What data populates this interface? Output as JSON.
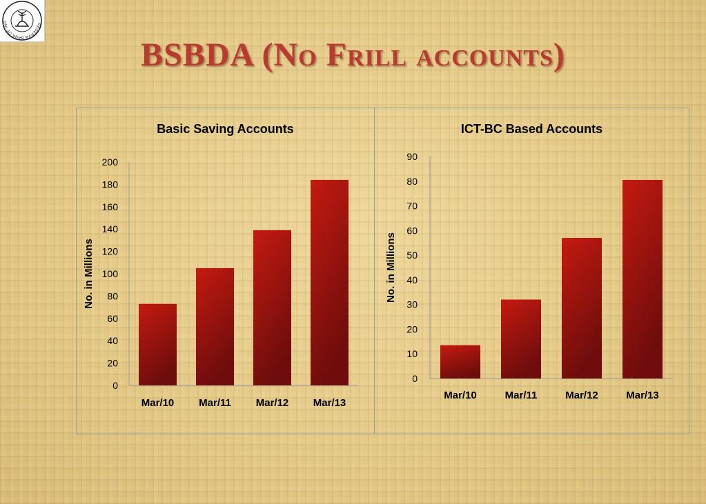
{
  "slide": {
    "title": "BSBDA (No Frill accounts)",
    "logo": {
      "icon": "rbi-seal-icon",
      "text": "RESERVE BANK OF INDIA"
    }
  },
  "colors": {
    "bar_top": "#c41a10",
    "bar_bottom": "#6e0d0c",
    "title": "#b83a30"
  },
  "chart_data": [
    {
      "type": "bar",
      "title": "Basic Saving Accounts",
      "ylabel": "No.  in Millions",
      "xlabel": "",
      "categories": [
        "Mar/10",
        "Mar/11",
        "Mar/12",
        "Mar/13"
      ],
      "values": [
        73,
        105,
        139,
        184
      ],
      "ylim": [
        0,
        200
      ],
      "yticks": [
        "0",
        "20",
        "40",
        "60",
        "80",
        "100",
        "120",
        "140",
        "160",
        "180",
        "200"
      ],
      "grid": false,
      "legend": "none"
    },
    {
      "type": "bar",
      "title": "ICT-BC Based Accounts",
      "ylabel": "No.  in Millions",
      "xlabel": "",
      "categories": [
        "Mar/10",
        "Mar/11",
        "Mar/12",
        "Mar/13"
      ],
      "values": [
        13.5,
        32,
        57,
        80.5
      ],
      "ylim": [
        0,
        90
      ],
      "yticks": [
        "0",
        "10",
        "20",
        "30",
        "40",
        "50",
        "60",
        "70",
        "80",
        "90"
      ],
      "grid": false,
      "legend": "none"
    }
  ]
}
